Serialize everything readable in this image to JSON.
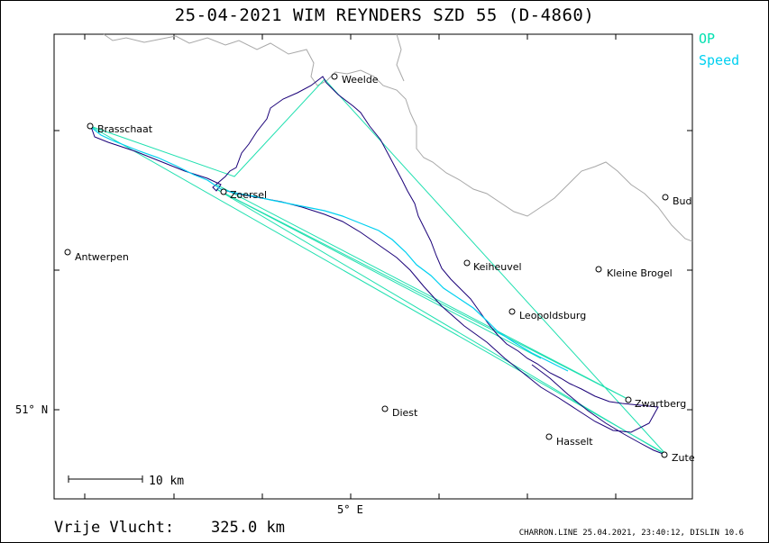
{
  "title": "25-04-2021   WIM REYNDERS   SZD 55 (D-4860)",
  "legend": {
    "op": {
      "label": "OP",
      "color": "#00e0b0"
    },
    "speed": {
      "label": "Speed",
      "color": "#00d0f0"
    }
  },
  "colors": {
    "track": "#1a0078",
    "track_speed": "#00d0f0",
    "task_line": "#20e0b0",
    "border": "#a8a8a8"
  },
  "places": [
    {
      "id": "weelde",
      "name": "Weelde"
    },
    {
      "id": "brasschaat",
      "name": "Brasschaat"
    },
    {
      "id": "zoersel",
      "name": "Zoersel"
    },
    {
      "id": "antwerpen",
      "name": "Antwerpen"
    },
    {
      "id": "keiheuvel",
      "name": "Keiheuvel"
    },
    {
      "id": "kleine-brogel",
      "name": "Kleine Brogel"
    },
    {
      "id": "leopoldsburg",
      "name": "Leopoldsburg"
    },
    {
      "id": "zwartberg",
      "name": "Zwartberg"
    },
    {
      "id": "diest",
      "name": "Diest"
    },
    {
      "id": "hasselt",
      "name": "Hasselt"
    },
    {
      "id": "zutendaal",
      "name": "Zute"
    },
    {
      "id": "budel",
      "name": "Bud"
    }
  ],
  "axes": {
    "lat_label": "51° N",
    "lon_label": "5° E"
  },
  "scale_bar": {
    "label": "10  km"
  },
  "footer": {
    "distance_label": "Vrije Vlucht:",
    "distance_value": "325.0 km",
    "credit": "CHARRON.LINE 25.04.2021, 23:40:12, DISLIN 10.6"
  }
}
